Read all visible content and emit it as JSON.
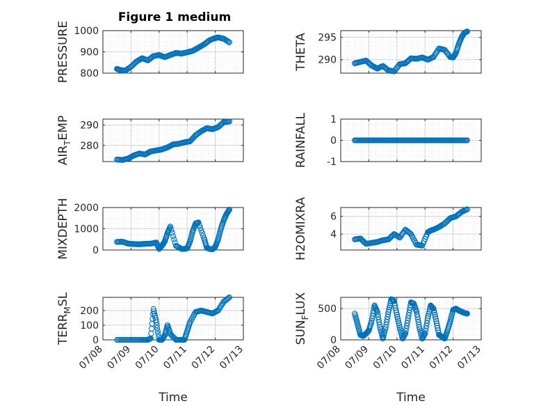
{
  "figure_title": "Figure 1 medium",
  "colors": {
    "marker": "#0072BD",
    "axis": "#262626",
    "grid": "#d9d9d9",
    "background": "#ffffff"
  },
  "chart_data": [
    {
      "type": "scatter",
      "id": "pressure",
      "ylabel": "PRESSURE",
      "title": "Figure 1 medium",
      "ylim": [
        800,
        1000
      ],
      "yticks": [
        "800",
        "900",
        "1000"
      ],
      "xlim": [
        0,
        5
      ],
      "show_xticklabels": false,
      "x": [
        0.5,
        0.6,
        0.8,
        1.0,
        1.2,
        1.4,
        1.6,
        1.8,
        2.0,
        2.2,
        2.4,
        2.6,
        2.8,
        3.0,
        3.2,
        3.4,
        3.6,
        3.8,
        4.0,
        4.1,
        4.3,
        4.5
      ],
      "y": [
        820,
        815,
        812,
        830,
        855,
        870,
        860,
        880,
        885,
        875,
        885,
        895,
        892,
        898,
        905,
        920,
        935,
        955,
        965,
        968,
        962,
        945
      ]
    },
    {
      "type": "scatter",
      "id": "theta",
      "ylabel": "THETA",
      "ylim": [
        287,
        296.5
      ],
      "yticks": [
        "290",
        "295"
      ],
      "xlim": [
        0,
        5
      ],
      "show_xticklabels": false,
      "x": [
        0.5,
        0.7,
        0.9,
        1.1,
        1.3,
        1.5,
        1.7,
        1.9,
        2.1,
        2.3,
        2.5,
        2.7,
        2.9,
        3.1,
        3.3,
        3.5,
        3.7,
        3.9,
        4.0,
        4.1,
        4.2,
        4.3,
        4.4,
        4.5
      ],
      "y": [
        289.2,
        289.5,
        289.8,
        288.7,
        288,
        288.6,
        287.6,
        287.4,
        289,
        289.2,
        290.3,
        290.2,
        290.5,
        290,
        290.6,
        292.5,
        292.2,
        290.6,
        290.5,
        291.5,
        293.5,
        295,
        296,
        296.3
      ]
    },
    {
      "type": "scatter",
      "id": "airtemp",
      "ylabel": "AIR_TEMP",
      "ylabel_main": "AIR",
      "ylabel_sub": "T",
      "ylabel_rest": "EMP",
      "ylim": [
        272,
        293
      ],
      "yticks": [
        "280",
        "290"
      ],
      "xlim": [
        0,
        5
      ],
      "show_xticklabels": false,
      "x": [
        0.5,
        0.7,
        0.9,
        1.1,
        1.3,
        1.5,
        1.7,
        1.9,
        2.1,
        2.3,
        2.5,
        2.7,
        2.9,
        3.1,
        3.3,
        3.5,
        3.7,
        3.9,
        4.1,
        4.3,
        4.5
      ],
      "y": [
        273,
        272.8,
        273.5,
        275,
        276,
        275.5,
        277,
        277.5,
        278,
        279,
        280.5,
        280.8,
        281.5,
        282,
        285,
        287,
        288.5,
        288,
        289,
        291.5,
        291.8
      ]
    },
    {
      "type": "scatter",
      "id": "rainfall",
      "ylabel": "RAINFALL",
      "ylim": [
        -1,
        1
      ],
      "yticks": [
        "-1",
        "0",
        "1"
      ],
      "xlim": [
        0,
        5
      ],
      "show_xticklabels": false,
      "x": [
        0.5,
        0.7,
        0.9,
        1.1,
        1.3,
        1.5,
        1.7,
        1.9,
        2.1,
        2.3,
        2.5,
        2.7,
        2.9,
        3.1,
        3.3,
        3.5,
        3.7,
        3.9,
        4.1,
        4.3,
        4.5
      ],
      "y": [
        0,
        0,
        0,
        0,
        0,
        0,
        0,
        0,
        0,
        0,
        0,
        0,
        0,
        0,
        0,
        0,
        0,
        0,
        0,
        0,
        0
      ]
    },
    {
      "type": "scatter",
      "id": "mixdepth",
      "ylabel": "MIXDEPTH",
      "ylim": [
        0,
        2000
      ],
      "yticks": [
        "0",
        "1000",
        "2000"
      ],
      "xlim": [
        0,
        5
      ],
      "show_xticklabels": false,
      "x": [
        0.5,
        0.7,
        0.9,
        1.1,
        1.3,
        1.5,
        1.7,
        1.9,
        2.0,
        2.1,
        2.2,
        2.3,
        2.4,
        2.6,
        2.8,
        2.9,
        3.0,
        3.1,
        3.2,
        3.3,
        3.4,
        3.6,
        3.7,
        3.8,
        3.9,
        4.0,
        4.1,
        4.2,
        4.3,
        4.4,
        4.5
      ],
      "y": [
        380,
        390,
        300,
        280,
        270,
        290,
        300,
        350,
        50,
        200,
        400,
        800,
        1100,
        200,
        50,
        50,
        80,
        400,
        900,
        1250,
        1300,
        550,
        100,
        50,
        30,
        150,
        500,
        1000,
        1400,
        1700,
        1900
      ]
    },
    {
      "type": "scatter",
      "id": "h2omixra",
      "ylabel": "H2OMIXRA",
      "ylim": [
        2.2,
        7
      ],
      "yticks": [
        "4",
        "6"
      ],
      "xlim": [
        0,
        5
      ],
      "show_xticklabels": false,
      "x": [
        0.5,
        0.7,
        0.9,
        1.1,
        1.3,
        1.5,
        1.7,
        1.9,
        2.1,
        2.3,
        2.5,
        2.7,
        2.9,
        3.1,
        3.2,
        3.3,
        3.5,
        3.7,
        3.9,
        4.1,
        4.3,
        4.5
      ],
      "y": [
        3.4,
        3.5,
        2.9,
        3.0,
        3.1,
        3.3,
        3.4,
        4.0,
        3.6,
        4.5,
        4.0,
        2.8,
        2.7,
        4.2,
        4.4,
        4.5,
        4.8,
        5.2,
        5.8,
        6.0,
        6.5,
        6.8
      ]
    },
    {
      "type": "scatter",
      "id": "terrmsl",
      "ylabel": "TERR_MSL",
      "ylabel_main": "TERR",
      "ylabel_sub": "M",
      "ylabel_rest": "SL",
      "ylim": [
        0,
        290
      ],
      "yticks": [
        "0",
        "100",
        "200"
      ],
      "xlim": [
        0,
        5
      ],
      "show_xticklabels": true,
      "xticks": [
        "07/08",
        "07/09",
        "07/10",
        "07/11",
        "07/12",
        "07/13"
      ],
      "xlabel": "Time",
      "x": [
        0.5,
        0.8,
        1.1,
        1.4,
        1.6,
        1.7,
        1.8,
        1.9,
        2.0,
        2.1,
        2.2,
        2.3,
        2.4,
        2.6,
        2.8,
        2.9,
        3.0,
        3.1,
        3.3,
        3.5,
        3.7,
        3.9,
        4.1,
        4.3,
        4.5
      ],
      "y": [
        0,
        0,
        0,
        0,
        0,
        10,
        210,
        120,
        0,
        0,
        30,
        100,
        40,
        0,
        0,
        0,
        60,
        120,
        190,
        200,
        190,
        180,
        200,
        260,
        290
      ]
    },
    {
      "type": "scatter",
      "id": "sunflux",
      "ylabel": "SUN_FLUX",
      "ylabel_main": "SUN",
      "ylabel_sub": "F",
      "ylabel_rest": "LUX",
      "ylim": [
        0,
        680
      ],
      "yticks": [
        "0",
        "500"
      ],
      "xlim": [
        0,
        5
      ],
      "show_xticklabels": true,
      "xticks": [
        "07/08",
        "07/09",
        "07/10",
        "07/11",
        "07/12",
        "07/13"
      ],
      "xlabel": "Time",
      "x": [
        0.5,
        0.6,
        0.7,
        0.8,
        0.9,
        1.0,
        1.1,
        1.2,
        1.3,
        1.4,
        1.5,
        1.6,
        1.7,
        1.8,
        1.9,
        2.0,
        2.1,
        2.2,
        2.3,
        2.4,
        2.5,
        2.6,
        2.7,
        2.8,
        2.9,
        3.0,
        3.1,
        3.2,
        3.3,
        3.4,
        3.5,
        3.6,
        3.7,
        3.8,
        3.9,
        4.0,
        4.1,
        4.2,
        4.3,
        4.4,
        4.5
      ],
      "y": [
        420,
        250,
        80,
        60,
        100,
        150,
        300,
        550,
        450,
        200,
        20,
        200,
        450,
        650,
        620,
        400,
        200,
        20,
        100,
        350,
        600,
        580,
        450,
        200,
        20,
        100,
        350,
        550,
        500,
        300,
        80,
        50,
        20,
        150,
        300,
        480,
        500,
        470,
        450,
        430,
        420
      ]
    }
  ]
}
